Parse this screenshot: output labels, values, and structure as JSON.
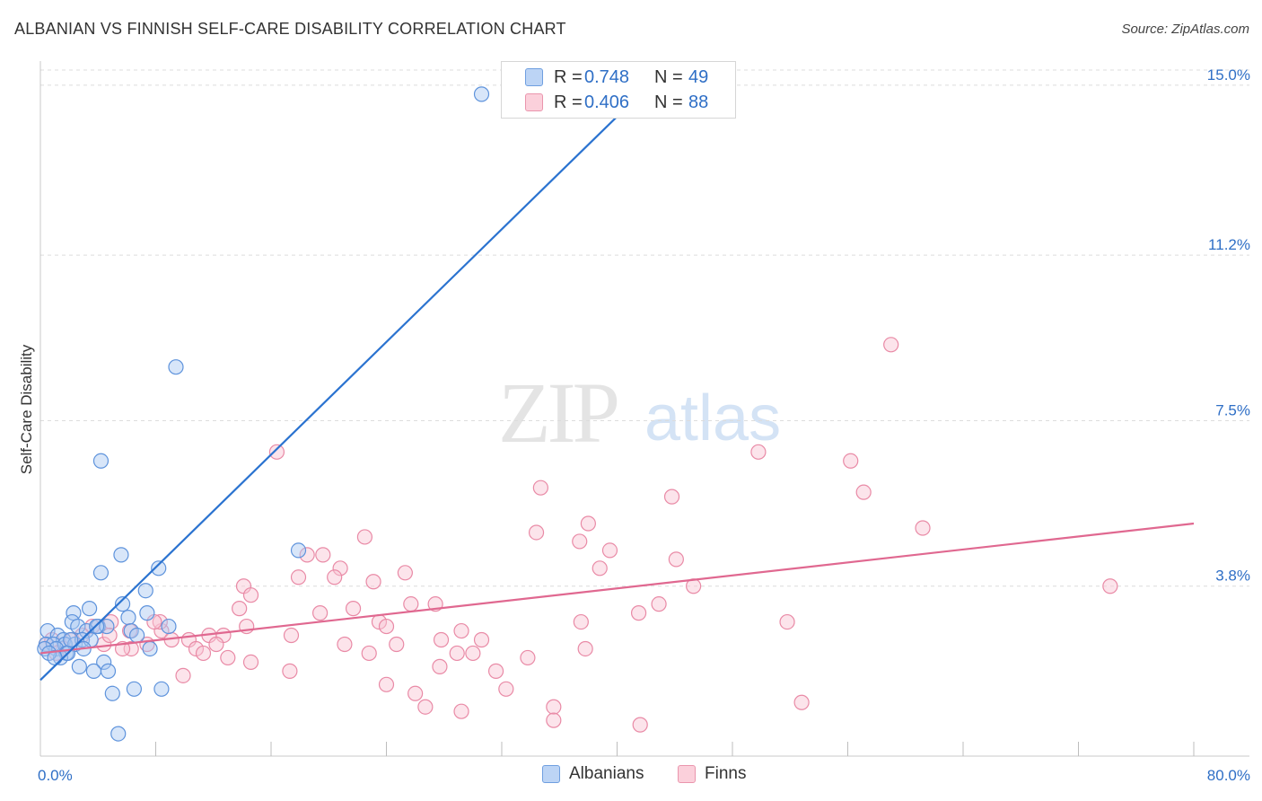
{
  "title": "ALBANIAN VS FINNISH SELF-CARE DISABILITY CORRELATION CHART",
  "source": "Source: ZipAtlas.com",
  "watermark": {
    "zip": "ZIP",
    "atlas": "atlas"
  },
  "legend": {
    "albanians": {
      "r_label": "R =",
      "r_value": "0.748",
      "n_label": "N =",
      "n_value": "49"
    },
    "finns": {
      "r_label": "R =",
      "r_value": "0.406",
      "n_label": "N =",
      "n_value": "88"
    }
  },
  "bottom_legend": {
    "albanians": "Albanians",
    "finns": "Finns"
  },
  "colors": {
    "albanians_fill": "#a9c8f2",
    "albanians_stroke": "#5e93dc",
    "albanians_line": "#2b73d0",
    "finns_fill": "#f9c3d2",
    "finns_stroke": "#e98aa6",
    "finns_line": "#e06890",
    "grid": "#dcdcdc",
    "tick_label": "#2f6fc6"
  },
  "chart_data": {
    "type": "scatter",
    "title": "ALBANIAN VS FINNISH SELF-CARE DISABILITY CORRELATION CHART",
    "xlabel": "",
    "ylabel": "Self-Care Disability",
    "xlim": [
      0,
      80
    ],
    "ylim": [
      0,
      15.4
    ],
    "x_tick_labels": [
      {
        "value": 0,
        "label": "0.0%"
      },
      {
        "value": 80,
        "label": "80.0%"
      }
    ],
    "y_tick_labels": [
      {
        "value": 3.8,
        "label": "3.8%"
      },
      {
        "value": 7.5,
        "label": "7.5%"
      },
      {
        "value": 11.2,
        "label": "11.2%"
      },
      {
        "value": 15.0,
        "label": "15.0%"
      }
    ],
    "x_minor_ticks": [
      8,
      16,
      24,
      32,
      40,
      48,
      56,
      64,
      72,
      80
    ],
    "series": [
      {
        "name": "Albanians",
        "regression": {
          "x": [
            0,
            40
          ],
          "y": [
            1.7,
            14.3
          ]
        },
        "points": [
          [
            30.6,
            14.8
          ],
          [
            9.4,
            8.7
          ],
          [
            4.2,
            6.6
          ],
          [
            5.6,
            4.5
          ],
          [
            4.2,
            4.1
          ],
          [
            8.2,
            4.2
          ],
          [
            17.9,
            4.6
          ],
          [
            7.3,
            3.7
          ],
          [
            5.7,
            3.4
          ],
          [
            3.4,
            3.3
          ],
          [
            2.3,
            3.2
          ],
          [
            6.1,
            3.1
          ],
          [
            7.4,
            3.2
          ],
          [
            2.2,
            3.0
          ],
          [
            2.6,
            2.9
          ],
          [
            4.0,
            2.9
          ],
          [
            4.6,
            2.9
          ],
          [
            8.9,
            2.9
          ],
          [
            0.5,
            2.8
          ],
          [
            1.2,
            2.7
          ],
          [
            1.6,
            2.6
          ],
          [
            3.2,
            2.8
          ],
          [
            6.3,
            2.8
          ],
          [
            6.7,
            2.7
          ],
          [
            0.4,
            2.5
          ],
          [
            0.9,
            2.5
          ],
          [
            1.7,
            2.5
          ],
          [
            2.4,
            2.5
          ],
          [
            2.9,
            2.6
          ],
          [
            3.5,
            2.6
          ],
          [
            1.1,
            2.4
          ],
          [
            1.8,
            2.3
          ],
          [
            7.6,
            2.4
          ],
          [
            0.3,
            2.4
          ],
          [
            1.4,
            2.2
          ],
          [
            1.9,
            2.3
          ],
          [
            4.4,
            2.1
          ],
          [
            2.7,
            2.0
          ],
          [
            3.7,
            1.9
          ],
          [
            4.7,
            1.9
          ],
          [
            5.0,
            1.4
          ],
          [
            6.5,
            1.5
          ],
          [
            8.4,
            1.5
          ],
          [
            5.4,
            0.5
          ],
          [
            0.6,
            2.3
          ],
          [
            2.1,
            2.6
          ],
          [
            3.0,
            2.4
          ],
          [
            1.0,
            2.2
          ],
          [
            3.9,
            2.9
          ]
        ]
      },
      {
        "name": "Finns",
        "regression": {
          "x": [
            0,
            80
          ],
          "y": [
            2.3,
            5.2
          ]
        },
        "points": [
          [
            59.0,
            9.2
          ],
          [
            16.4,
            6.8
          ],
          [
            49.8,
            6.8
          ],
          [
            56.2,
            6.6
          ],
          [
            34.7,
            6.0
          ],
          [
            43.8,
            5.8
          ],
          [
            57.1,
            5.9
          ],
          [
            38.0,
            5.2
          ],
          [
            61.2,
            5.1
          ],
          [
            34.4,
            5.0
          ],
          [
            22.5,
            4.9
          ],
          [
            37.4,
            4.8
          ],
          [
            39.5,
            4.6
          ],
          [
            18.5,
            4.5
          ],
          [
            19.6,
            4.5
          ],
          [
            44.1,
            4.4
          ],
          [
            38.8,
            4.2
          ],
          [
            20.8,
            4.2
          ],
          [
            25.3,
            4.1
          ],
          [
            17.9,
            4.0
          ],
          [
            20.4,
            4.0
          ],
          [
            23.1,
            3.9
          ],
          [
            14.1,
            3.8
          ],
          [
            45.3,
            3.8
          ],
          [
            74.2,
            3.8
          ],
          [
            14.6,
            3.6
          ],
          [
            27.4,
            3.4
          ],
          [
            25.7,
            3.4
          ],
          [
            42.9,
            3.4
          ],
          [
            13.8,
            3.3
          ],
          [
            21.7,
            3.3
          ],
          [
            19.4,
            3.2
          ],
          [
            41.5,
            3.2
          ],
          [
            23.5,
            3.0
          ],
          [
            37.5,
            3.0
          ],
          [
            51.8,
            3.0
          ],
          [
            14.3,
            2.9
          ],
          [
            24.0,
            2.9
          ],
          [
            29.2,
            2.8
          ],
          [
            17.4,
            2.7
          ],
          [
            11.7,
            2.7
          ],
          [
            12.7,
            2.7
          ],
          [
            6.2,
            2.8
          ],
          [
            8.4,
            2.8
          ],
          [
            27.8,
            2.6
          ],
          [
            30.6,
            2.6
          ],
          [
            9.1,
            2.6
          ],
          [
            10.3,
            2.6
          ],
          [
            24.7,
            2.5
          ],
          [
            21.1,
            2.5
          ],
          [
            12.2,
            2.5
          ],
          [
            10.8,
            2.4
          ],
          [
            6.3,
            2.4
          ],
          [
            5.7,
            2.4
          ],
          [
            7.4,
            2.5
          ],
          [
            11.3,
            2.3
          ],
          [
            28.9,
            2.3
          ],
          [
            30.0,
            2.3
          ],
          [
            37.8,
            2.4
          ],
          [
            22.8,
            2.3
          ],
          [
            33.8,
            2.2
          ],
          [
            13.0,
            2.2
          ],
          [
            14.6,
            2.1
          ],
          [
            27.7,
            2.0
          ],
          [
            31.6,
            1.9
          ],
          [
            17.3,
            1.9
          ],
          [
            9.9,
            1.8
          ],
          [
            24.0,
            1.6
          ],
          [
            26.0,
            1.4
          ],
          [
            32.3,
            1.5
          ],
          [
            52.8,
            1.2
          ],
          [
            26.7,
            1.1
          ],
          [
            35.6,
            1.1
          ],
          [
            29.2,
            1.0
          ],
          [
            35.6,
            0.8
          ],
          [
            41.6,
            0.7
          ],
          [
            8.3,
            3.0
          ],
          [
            4.9,
            3.0
          ],
          [
            3.6,
            2.9
          ],
          [
            2.2,
            2.6
          ],
          [
            1.6,
            2.4
          ],
          [
            4.4,
            2.5
          ],
          [
            1.1,
            2.3
          ],
          [
            0.4,
            2.5
          ],
          [
            2.9,
            2.7
          ],
          [
            4.8,
            2.7
          ],
          [
            0.8,
            2.6
          ],
          [
            7.9,
            3.0
          ]
        ]
      }
    ]
  }
}
